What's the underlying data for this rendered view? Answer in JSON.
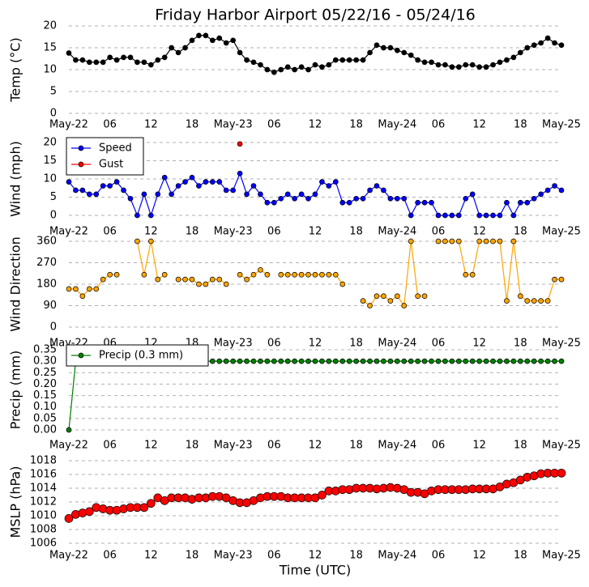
{
  "chart_data": [
    {
      "type": "line",
      "title": "Friday Harbor Airport 05/22/16 - 05/24/16",
      "y_label": "Temp (°C)",
      "color": "#000000",
      "grid": true,
      "x": [
        0,
        1,
        2,
        3,
        4,
        5,
        6,
        7,
        8,
        9,
        10,
        11,
        12,
        13,
        14,
        15,
        16,
        17,
        18,
        19,
        20,
        21,
        22,
        23,
        24,
        25,
        26,
        27,
        28,
        29,
        30,
        31,
        32,
        33,
        34,
        35,
        36,
        37,
        38,
        39,
        40,
        41,
        42,
        43,
        44,
        45,
        46,
        47,
        48,
        49,
        50,
        51,
        52,
        53,
        54,
        55,
        56,
        57,
        58,
        59,
        60,
        61,
        62,
        63,
        64,
        65,
        66,
        67,
        68,
        69,
        70,
        71,
        72
      ],
      "values": [
        13.8,
        12.2,
        12.2,
        11.7,
        11.7,
        11.7,
        12.8,
        12.2,
        12.8,
        12.8,
        11.7,
        11.7,
        11.1,
        12.2,
        12.8,
        15.0,
        13.9,
        15.0,
        16.7,
        17.8,
        17.8,
        16.7,
        17.2,
        16.1,
        16.7,
        13.9,
        12.2,
        11.7,
        11.1,
        10.0,
        9.4,
        10.0,
        10.6,
        10.0,
        10.6,
        10.0,
        11.1,
        10.6,
        11.1,
        12.2,
        12.2,
        12.2,
        12.2,
        12.2,
        13.9,
        15.6,
        15.0,
        15.0,
        14.4,
        13.9,
        13.3,
        12.2,
        11.7,
        11.7,
        11.1,
        11.1,
        10.6,
        10.6,
        11.1,
        11.1,
        10.6,
        10.6,
        11.1,
        11.7,
        12.2,
        12.8,
        13.9,
        15.0,
        15.6,
        16.1,
        17.2,
        16.1,
        15.6
      ],
      "xlim": [
        0,
        72
      ],
      "xticks": [
        {
          "value": 0,
          "label": "May-22"
        },
        {
          "value": 6,
          "label": "06"
        },
        {
          "value": 12,
          "label": "12"
        },
        {
          "value": 18,
          "label": "18"
        },
        {
          "value": 24,
          "label": "May-23"
        },
        {
          "value": 30,
          "label": "06"
        },
        {
          "value": 36,
          "label": "12"
        },
        {
          "value": 42,
          "label": "18"
        },
        {
          "value": 48,
          "label": "May-24"
        },
        {
          "value": 54,
          "label": "06"
        },
        {
          "value": 60,
          "label": "12"
        },
        {
          "value": 66,
          "label": "18"
        },
        {
          "value": 72,
          "label": "May-25"
        }
      ],
      "ylim": [
        0,
        20
      ],
      "yticks": [
        0,
        5,
        10,
        15,
        20
      ]
    },
    {
      "type": "line",
      "y_label": "Wind (mph)",
      "grid": true,
      "legend": "upper left",
      "x": [
        0,
        1,
        2,
        3,
        4,
        5,
        6,
        7,
        8,
        9,
        10,
        11,
        12,
        13,
        14,
        15,
        16,
        17,
        18,
        19,
        20,
        21,
        22,
        23,
        24,
        25,
        26,
        27,
        28,
        29,
        30,
        31,
        32,
        33,
        34,
        35,
        36,
        37,
        38,
        39,
        40,
        41,
        42,
        43,
        44,
        45,
        46,
        47,
        48,
        49,
        50,
        51,
        52,
        53,
        54,
        55,
        56,
        57,
        58,
        59,
        60,
        61,
        62,
        63,
        64,
        65,
        66,
        67,
        68,
        69,
        70,
        71,
        72
      ],
      "series": [
        {
          "name": "Speed",
          "color": "#0000ff",
          "values": [
            9.2,
            6.9,
            6.9,
            5.8,
            5.8,
            8.1,
            8.1,
            9.2,
            6.9,
            4.6,
            0,
            5.8,
            0,
            5.8,
            10.4,
            5.8,
            8.1,
            9.2,
            10.4,
            8.1,
            9.2,
            9.2,
            9.2,
            6.9,
            6.9,
            11.5,
            5.8,
            8.1,
            5.8,
            3.5,
            3.5,
            4.6,
            5.8,
            4.6,
            5.8,
            4.6,
            5.8,
            9.2,
            8.1,
            9.2,
            3.5,
            3.5,
            4.6,
            4.6,
            6.9,
            8.1,
            6.9,
            4.6,
            4.6,
            4.6,
            0,
            3.5,
            3.5,
            3.5,
            0,
            0,
            0,
            0,
            4.6,
            5.8,
            0,
            0,
            0,
            0,
            3.5,
            0,
            3.5,
            3.5,
            4.6,
            5.8,
            6.9,
            8.1,
            6.9
          ]
        },
        {
          "name": "Gust",
          "color": "#ff0000",
          "linestyle": "none",
          "values": [
            null,
            null,
            null,
            null,
            null,
            null,
            null,
            null,
            null,
            null,
            null,
            null,
            null,
            null,
            null,
            null,
            null,
            null,
            null,
            null,
            null,
            null,
            null,
            null,
            null,
            19.6,
            null,
            null,
            null,
            null,
            null,
            null,
            null,
            null,
            null,
            null,
            null,
            null,
            null,
            null,
            null,
            null,
            null,
            null,
            null,
            null,
            null,
            null,
            null,
            null,
            null,
            null,
            null,
            null,
            null,
            null,
            null,
            null,
            null,
            null,
            null,
            null,
            null,
            null,
            null,
            null,
            null,
            null,
            null,
            null,
            null,
            null,
            null
          ]
        }
      ],
      "xlim": [
        0,
        72
      ],
      "xticks": [
        {
          "value": 0,
          "label": "May-22"
        },
        {
          "value": 6,
          "label": "06"
        },
        {
          "value": 12,
          "label": "12"
        },
        {
          "value": 18,
          "label": "18"
        },
        {
          "value": 24,
          "label": "May-23"
        },
        {
          "value": 30,
          "label": "06"
        },
        {
          "value": 36,
          "label": "12"
        },
        {
          "value": 42,
          "label": "18"
        },
        {
          "value": 48,
          "label": "May-24"
        },
        {
          "value": 54,
          "label": "06"
        },
        {
          "value": 60,
          "label": "12"
        },
        {
          "value": 66,
          "label": "18"
        },
        {
          "value": 72,
          "label": "May-25"
        }
      ],
      "ylim": [
        0,
        20
      ],
      "yticks": [
        0,
        5,
        10,
        15,
        20
      ]
    },
    {
      "type": "line",
      "y_label": "Wind Direction",
      "color": "#ffa500",
      "grid": true,
      "x": [
        0,
        1,
        2,
        3,
        4,
        5,
        6,
        7,
        8,
        9,
        10,
        11,
        12,
        13,
        14,
        15,
        16,
        17,
        18,
        19,
        20,
        21,
        22,
        23,
        24,
        25,
        26,
        27,
        28,
        29,
        30,
        31,
        32,
        33,
        34,
        35,
        36,
        37,
        38,
        39,
        40,
        41,
        42,
        43,
        44,
        45,
        46,
        47,
        48,
        49,
        50,
        51,
        52,
        53,
        54,
        55,
        56,
        57,
        58,
        59,
        60,
        61,
        62,
        63,
        64,
        65,
        66,
        67,
        68,
        69,
        70,
        71,
        72
      ],
      "values": [
        160,
        160,
        130,
        160,
        160,
        200,
        220,
        220,
        null,
        null,
        360,
        220,
        360,
        200,
        220,
        null,
        200,
        200,
        200,
        180,
        180,
        200,
        200,
        180,
        null,
        220,
        200,
        220,
        240,
        220,
        null,
        220,
        220,
        220,
        220,
        220,
        220,
        220,
        220,
        220,
        180,
        null,
        null,
        110,
        90,
        130,
        130,
        110,
        130,
        90,
        360,
        130,
        130,
        null,
        360,
        360,
        360,
        360,
        220,
        220,
        360,
        360,
        360,
        360,
        110,
        360,
        130,
        110,
        110,
        110,
        110,
        200,
        200
      ],
      "xlim": [
        0,
        72
      ],
      "xticks": [
        {
          "value": 0,
          "label": "May-22"
        },
        {
          "value": 6,
          "label": "06"
        },
        {
          "value": 12,
          "label": "12"
        },
        {
          "value": 18,
          "label": "18"
        },
        {
          "value": 24,
          "label": "May-23"
        },
        {
          "value": 30,
          "label": "06"
        },
        {
          "value": 36,
          "label": "12"
        },
        {
          "value": 42,
          "label": "18"
        },
        {
          "value": 48,
          "label": "May-24"
        },
        {
          "value": 54,
          "label": "06"
        },
        {
          "value": 60,
          "label": "12"
        },
        {
          "value": 66,
          "label": "18"
        },
        {
          "value": 72,
          "label": "May-25"
        }
      ],
      "ylim": [
        0,
        360
      ],
      "yticks": [
        0,
        90,
        180,
        270,
        360
      ]
    },
    {
      "type": "line",
      "y_label": "Precip (mm)",
      "grid": true,
      "legend": "upper left",
      "x": [
        0,
        1,
        2,
        3,
        4,
        5,
        6,
        7,
        8,
        9,
        10,
        11,
        12,
        13,
        14,
        15,
        16,
        17,
        18,
        19,
        20,
        21,
        22,
        23,
        24,
        25,
        26,
        27,
        28,
        29,
        30,
        31,
        32,
        33,
        34,
        35,
        36,
        37,
        38,
        39,
        40,
        41,
        42,
        43,
        44,
        45,
        46,
        47,
        48,
        49,
        50,
        51,
        52,
        53,
        54,
        55,
        56,
        57,
        58,
        59,
        60,
        61,
        62,
        63,
        64,
        65,
        66,
        67,
        68,
        69,
        70,
        71,
        72
      ],
      "series": [
        {
          "name": "Precip (0.3 mm)",
          "color": "#008000",
          "values": [
            0,
            0.3,
            0.3,
            0.3,
            0.3,
            0.3,
            0.3,
            0.3,
            0.3,
            0.3,
            0.3,
            0.3,
            0.3,
            0.3,
            0.3,
            0.3,
            0.3,
            0.3,
            0.3,
            0.3,
            0.3,
            0.3,
            0.3,
            0.3,
            0.3,
            0.3,
            0.3,
            0.3,
            0.3,
            0.3,
            0.3,
            0.3,
            0.3,
            0.3,
            0.3,
            0.3,
            0.3,
            0.3,
            0.3,
            0.3,
            0.3,
            0.3,
            0.3,
            0.3,
            0.3,
            0.3,
            0.3,
            0.3,
            0.3,
            0.3,
            0.3,
            0.3,
            0.3,
            0.3,
            0.3,
            0.3,
            0.3,
            0.3,
            0.3,
            0.3,
            0.3,
            0.3,
            0.3,
            0.3,
            0.3,
            0.3,
            0.3,
            0.3,
            0.3,
            0.3,
            0.3,
            0.3,
            0.3
          ]
        }
      ],
      "xlim": [
        0,
        72
      ],
      "xticks": [
        {
          "value": 0,
          "label": "May-22"
        },
        {
          "value": 6,
          "label": "06"
        },
        {
          "value": 12,
          "label": "12"
        },
        {
          "value": 18,
          "label": "18"
        },
        {
          "value": 24,
          "label": "May-23"
        },
        {
          "value": 30,
          "label": "06"
        },
        {
          "value": 36,
          "label": "12"
        },
        {
          "value": 42,
          "label": "18"
        },
        {
          "value": 48,
          "label": "May-24"
        },
        {
          "value": 54,
          "label": "06"
        },
        {
          "value": 60,
          "label": "12"
        },
        {
          "value": 66,
          "label": "18"
        },
        {
          "value": 72,
          "label": "May-25"
        }
      ],
      "ylim": [
        0,
        0.35
      ],
      "yticks": [
        {
          "value": 0,
          "label": "0.00"
        },
        {
          "value": 0.05,
          "label": "0.05"
        },
        {
          "value": 0.1,
          "label": "0.10"
        },
        {
          "value": 0.15,
          "label": "0.15"
        },
        {
          "value": 0.2,
          "label": "0.20"
        },
        {
          "value": 0.25,
          "label": "0.25"
        },
        {
          "value": 0.3,
          "label": "0.30"
        },
        {
          "value": 0.35,
          "label": "0.35"
        }
      ]
    },
    {
      "type": "scatter",
      "y_label": "MSLP (hPa)",
      "x_label": "Time (UTC)",
      "color": "#ff0000",
      "grid": true,
      "x": [
        0,
        1,
        2,
        3,
        4,
        5,
        6,
        7,
        8,
        9,
        10,
        11,
        12,
        13,
        14,
        15,
        16,
        17,
        18,
        19,
        20,
        21,
        22,
        23,
        24,
        25,
        26,
        27,
        28,
        29,
        30,
        31,
        32,
        33,
        34,
        35,
        36,
        37,
        38,
        39,
        40,
        41,
        42,
        43,
        44,
        45,
        46,
        47,
        48,
        49,
        50,
        51,
        52,
        53,
        54,
        55,
        56,
        57,
        58,
        59,
        60,
        61,
        62,
        63,
        64,
        65,
        66,
        67,
        68,
        69,
        70,
        71,
        72
      ],
      "values": [
        1009.6,
        1010.2,
        1010.4,
        1010.6,
        1011.2,
        1011.0,
        1010.8,
        1010.8,
        1011.0,
        1011.2,
        1011.2,
        1011.2,
        1011.8,
        1012.6,
        1012.2,
        1012.6,
        1012.6,
        1012.6,
        1012.4,
        1012.6,
        1012.6,
        1012.8,
        1012.8,
        1012.6,
        1012.2,
        1011.9,
        1011.9,
        1012.2,
        1012.6,
        1012.8,
        1012.8,
        1012.8,
        1012.6,
        1012.6,
        1012.6,
        1012.6,
        1012.6,
        1013.0,
        1013.6,
        1013.6,
        1013.8,
        1013.8,
        1014.0,
        1014.0,
        1014.0,
        1013.9,
        1014.0,
        1014.1,
        1014.0,
        1013.8,
        1013.4,
        1013.4,
        1013.2,
        1013.6,
        1013.8,
        1013.8,
        1013.8,
        1013.8,
        1013.8,
        1013.9,
        1013.9,
        1013.9,
        1013.9,
        1014.2,
        1014.6,
        1014.8,
        1015.2,
        1015.6,
        1015.8,
        1016.1,
        1016.2,
        1016.2,
        1016.2
      ],
      "xlim": [
        0,
        72
      ],
      "xticks": [
        {
          "value": 0,
          "label": "May-22"
        },
        {
          "value": 6,
          "label": "06"
        },
        {
          "value": 12,
          "label": "12"
        },
        {
          "value": 18,
          "label": "18"
        },
        {
          "value": 24,
          "label": "May-23"
        },
        {
          "value": 30,
          "label": "06"
        },
        {
          "value": 36,
          "label": "12"
        },
        {
          "value": 42,
          "label": "18"
        },
        {
          "value": 48,
          "label": "May-24"
        },
        {
          "value": 54,
          "label": "06"
        },
        {
          "value": 60,
          "label": "12"
        },
        {
          "value": 66,
          "label": "18"
        },
        {
          "value": 72,
          "label": "May-25"
        }
      ],
      "ylim": [
        1006,
        1018
      ],
      "yticks": [
        1006,
        1008,
        1010,
        1012,
        1014,
        1016,
        1018
      ]
    }
  ]
}
